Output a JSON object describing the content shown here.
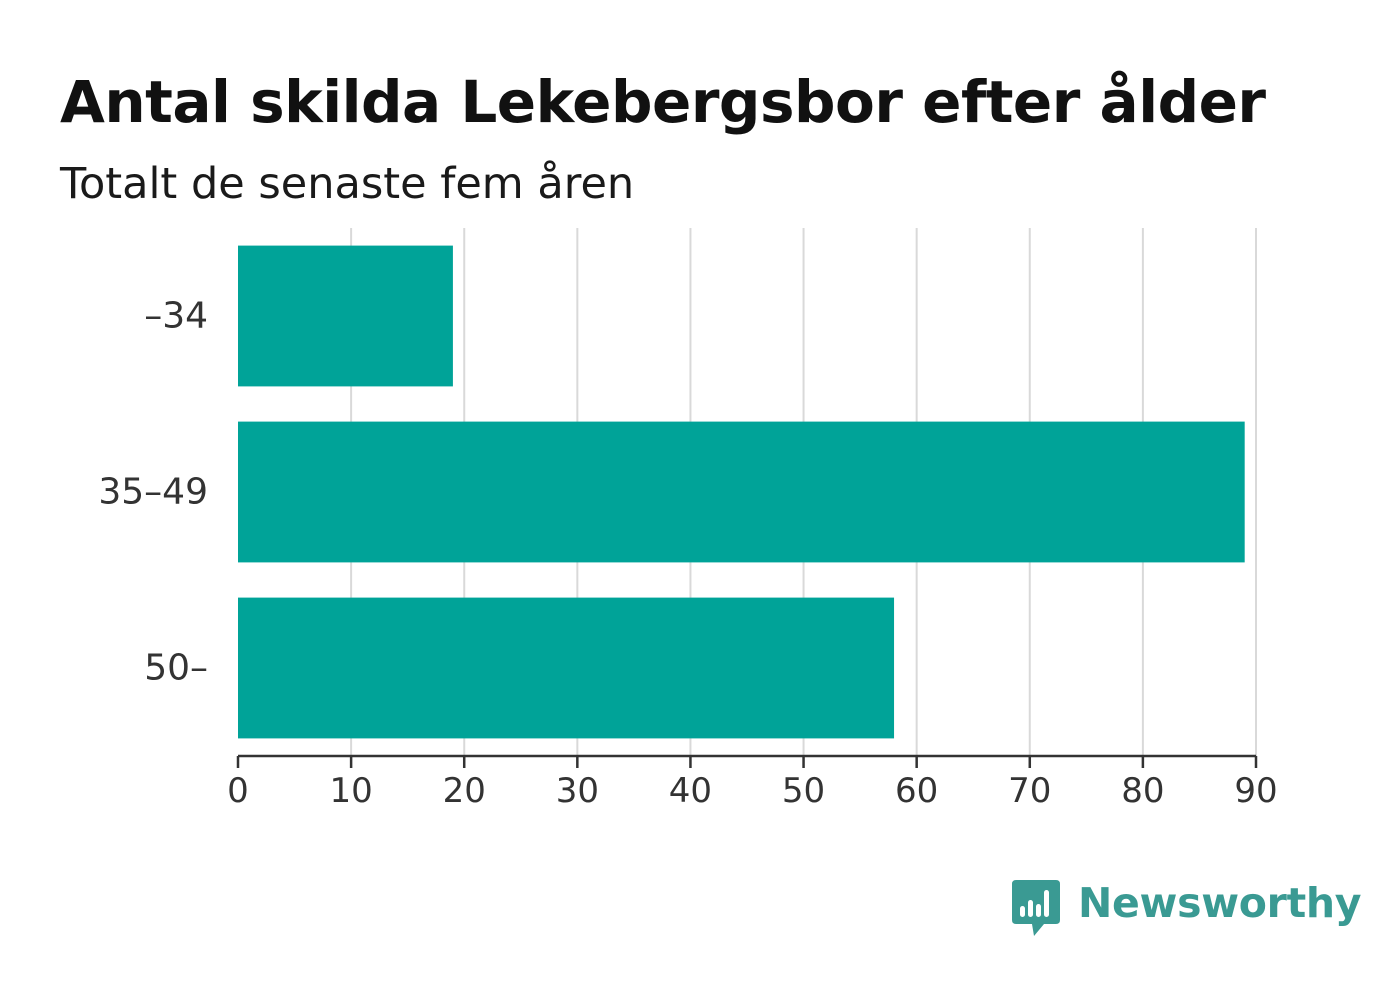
{
  "title": "Antal skilda Lekebergsbor efter ålder",
  "subtitle": "Totalt de senaste fem åren",
  "brand": {
    "name": "Newsworthy",
    "icon": "newsworthy-logo-icon",
    "color": "#3a9a93"
  },
  "colors": {
    "bar": "#00a398",
    "grid": "#d9d9d9",
    "axis": "#333333"
  },
  "chart_data": {
    "type": "bar",
    "orientation": "horizontal",
    "categories": [
      "–34",
      "35–49",
      "50–"
    ],
    "values": [
      19,
      89,
      58
    ],
    "xlim": [
      0,
      90
    ],
    "xticks": [
      0,
      10,
      20,
      30,
      40,
      50,
      60,
      70,
      80,
      90
    ],
    "grid": true,
    "legend": "none",
    "title": "Antal skilda Lekebergsbor efter ålder",
    "subtitle": "Totalt de senaste fem åren"
  }
}
